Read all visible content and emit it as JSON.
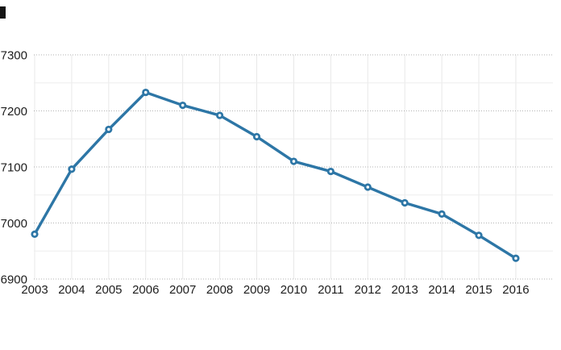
{
  "chart_data": {
    "type": "line",
    "categories": [
      "2003",
      "2004",
      "2005",
      "2006",
      "2007",
      "2008",
      "2009",
      "2010",
      "2011",
      "2012",
      "2013",
      "2014",
      "2015",
      "2016"
    ],
    "values": [
      6980,
      7096,
      7167,
      7233,
      7210,
      7192,
      7154,
      7110,
      7092,
      7064,
      7036,
      7016,
      6978,
      6937
    ],
    "title": "",
    "xlabel": "",
    "ylabel": "",
    "ylim": [
      6900,
      7300
    ],
    "ytick_step": 100,
    "yticks": [
      7300,
      7200,
      7100,
      7000,
      6900
    ],
    "y_minor_ticks": [
      7250,
      7150,
      7050,
      6950
    ],
    "grid": "on",
    "legend": "none",
    "marker": "open-circle",
    "colors": {
      "line": "#2d76a6",
      "marker_fill": "#ffffff",
      "major_grid": "#b3b3b3",
      "minor_grid": "#ededed",
      "vertical_grid": "#e8e8e8",
      "tick_label": "#1d1d1d",
      "background": "#ffffff",
      "artifact_mark": "#151515"
    }
  }
}
